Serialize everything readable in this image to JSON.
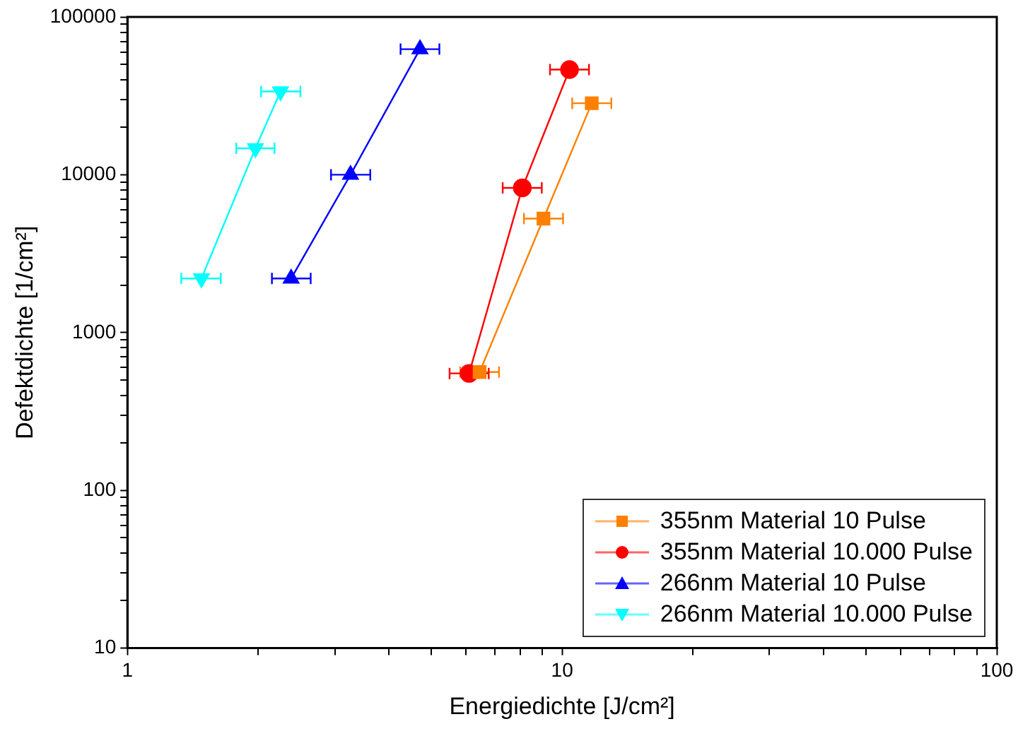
{
  "chart_data": {
    "type": "scatter",
    "xlabel": "Energiedichte [J/cm²]",
    "ylabel": "Defektdichte [1/cm²]",
    "log": "xy",
    "legend": "bottom right",
    "grid": false,
    "xlim": [
      1,
      100
    ],
    "ylim": [
      10,
      100000
    ],
    "xticks": [
      1,
      {
        "value": 2,
        "label": null
      },
      {
        "value": 3,
        "label": null
      },
      {
        "value": 4,
        "label": null
      },
      {
        "value": 5,
        "label": null
      },
      {
        "value": 6,
        "label": null
      },
      {
        "value": 7,
        "label": null
      },
      {
        "value": 8,
        "label": null
      },
      {
        "value": 9,
        "label": null
      },
      10,
      {
        "value": 20,
        "label": null
      },
      {
        "value": 30,
        "label": null
      },
      {
        "value": 40,
        "label": null
      },
      {
        "value": 50,
        "label": null
      },
      {
        "value": 60,
        "label": null
      },
      {
        "value": 70,
        "label": null
      },
      {
        "value": 80,
        "label": null
      },
      {
        "value": 90,
        "label": null
      },
      100
    ],
    "yticks": [
      10,
      {
        "value": 20,
        "label": null
      },
      {
        "value": 30,
        "label": null
      },
      {
        "value": 40,
        "label": null
      },
      {
        "value": 50,
        "label": null
      },
      {
        "value": 60,
        "label": null
      },
      {
        "value": 70,
        "label": null
      },
      {
        "value": 80,
        "label": null
      },
      {
        "value": 90,
        "label": null
      },
      100,
      {
        "value": 200,
        "label": null
      },
      {
        "value": 300,
        "label": null
      },
      {
        "value": 400,
        "label": null
      },
      {
        "value": 500,
        "label": null
      },
      {
        "value": 600,
        "label": null
      },
      {
        "value": 700,
        "label": null
      },
      {
        "value": 800,
        "label": null
      },
      {
        "value": 900,
        "label": null
      },
      1000,
      {
        "value": 2000,
        "label": null
      },
      {
        "value": 3000,
        "label": null
      },
      {
        "value": 4000,
        "label": null
      },
      {
        "value": 5000,
        "label": null
      },
      {
        "value": 6000,
        "label": null
      },
      {
        "value": 7000,
        "label": null
      },
      {
        "value": 8000,
        "label": null
      },
      {
        "value": 9000,
        "label": null
      },
      10000,
      {
        "value": 20000,
        "label": null
      },
      {
        "value": 30000,
        "label": null
      },
      {
        "value": 40000,
        "label": null
      },
      {
        "value": 50000,
        "label": null
      },
      {
        "value": 60000,
        "label": null
      },
      {
        "value": 70000,
        "label": null
      },
      {
        "value": 80000,
        "label": null
      },
      {
        "value": 90000,
        "label": null
      },
      100000
    ],
    "series": [
      {
        "name": "355nm Material 10 Pulse",
        "color": "#ff8000",
        "type": "line",
        "marker": "square",
        "x": [
          6.46,
          9.06,
          11.7
        ],
        "values": [
          562,
          5270,
          28400
        ],
        "xerrors": [
          [
            5.83,
            7.16
          ],
          [
            8.17,
            10.05
          ],
          [
            10.55,
            12.98
          ]
        ]
      },
      {
        "name": "355nm Material 10.000 Pulse",
        "color": "#ff0000",
        "type": "line",
        "marker": "circle",
        "x": [
          6.11,
          8.1,
          10.4
        ],
        "values": [
          551,
          8260,
          46400
        ],
        "xerrors": [
          [
            5.51,
            6.78
          ],
          [
            7.3,
            8.98
          ],
          [
            9.38,
            11.53
          ]
        ]
      },
      {
        "name": "266nm Material 10 Pulse",
        "color": "#0000ff",
        "type": "line",
        "marker": "triangle",
        "x": [
          2.38,
          3.26,
          4.71
        ],
        "values": [
          2200,
          10000,
          62500
        ],
        "xerrors": [
          [
            2.15,
            2.64
          ],
          [
            2.94,
            3.62
          ],
          [
            4.25,
            5.22
          ]
        ]
      },
      {
        "name": "266nm Material 10.000 Pulse",
        "color": "#00ffff",
        "type": "line",
        "marker": "triangle-down",
        "x": [
          1.48,
          1.97,
          2.25
        ],
        "values": [
          2200,
          14700,
          33700
        ],
        "xerrors": [
          [
            1.33,
            1.64
          ],
          [
            1.78,
            2.18
          ],
          [
            2.03,
            2.5
          ]
        ]
      }
    ]
  }
}
